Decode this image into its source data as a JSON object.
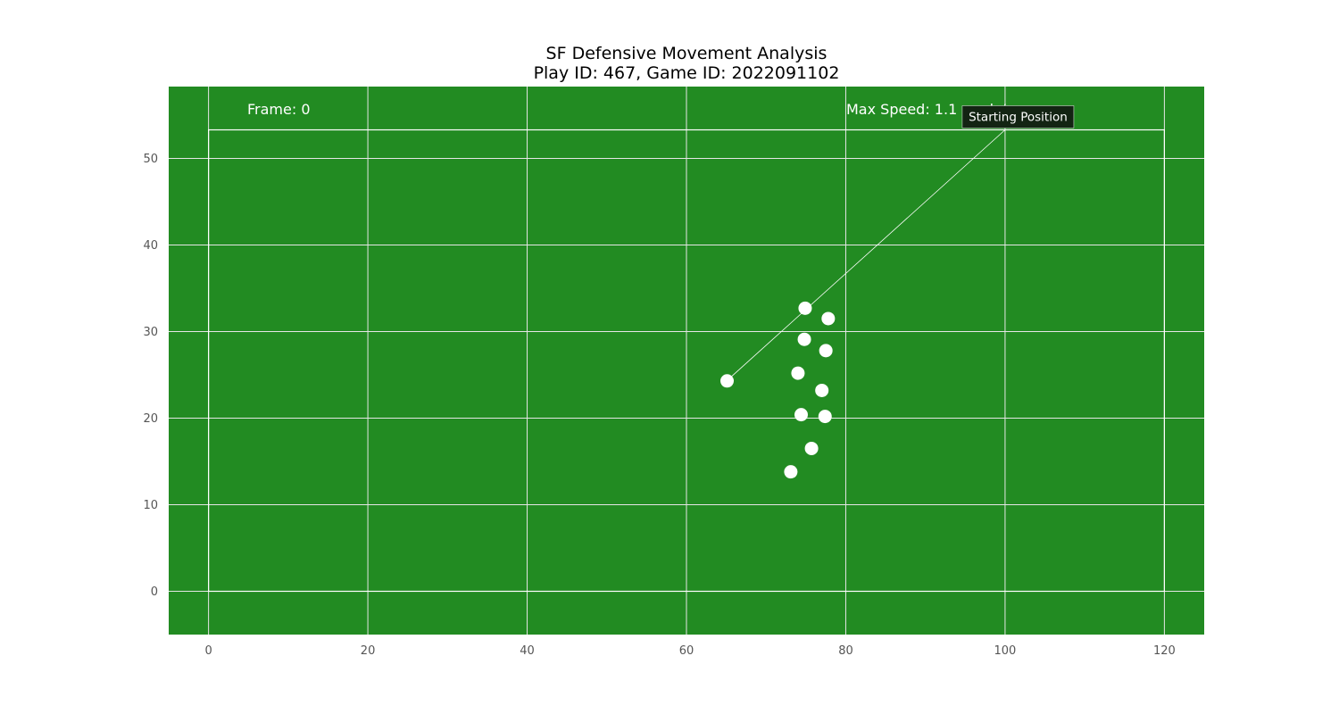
{
  "chart_data": {
    "type": "scatter",
    "title": "SF Defensive Movement Analysis\nPlay ID: 467, Game ID: 2022091102",
    "xlabel": "",
    "ylabel": "",
    "xlim": [
      -5,
      125
    ],
    "ylim": [
      -5,
      58.3
    ],
    "xticks": [
      0,
      20,
      40,
      60,
      80,
      100,
      120
    ],
    "yticks": [
      0,
      10,
      20,
      30,
      40,
      50
    ],
    "grid": true,
    "field_boundary": {
      "x": [
        0,
        120
      ],
      "y": [
        0,
        53.3
      ]
    },
    "colors": {
      "field": "#228b22",
      "grid": "#e6e6e6",
      "boundary": "#ffffff",
      "marker": "#ffffff",
      "annotation_box": "#132413"
    },
    "frame_text": "Frame: 0",
    "max_speed_text": "Max Speed: 1.1 yards/s",
    "annotation": {
      "text": "Starting Position",
      "point": [
        65.1,
        24.3
      ],
      "text_anchor": [
        100,
        53.3
      ]
    },
    "series": [
      {
        "points": [
          [
            65.1,
            24.3
          ],
          [
            74.9,
            32.7
          ],
          [
            77.8,
            31.5
          ],
          [
            74.8,
            29.1
          ],
          [
            77.5,
            27.8
          ],
          [
            74.0,
            25.2
          ],
          [
            77.0,
            23.2
          ],
          [
            74.4,
            20.4
          ],
          [
            77.4,
            20.2
          ],
          [
            75.7,
            16.5
          ],
          [
            73.1,
            13.8
          ]
        ]
      }
    ]
  }
}
